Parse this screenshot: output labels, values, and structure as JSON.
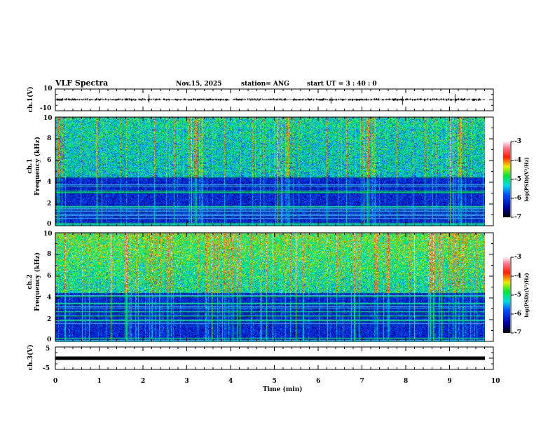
{
  "header": {
    "title": "VLF Spectra",
    "date": "Nov.15, 2025",
    "station": "station= ANG",
    "start": "start  UT =   3  : 40 : 0"
  },
  "chart_data": [
    {
      "type": "line",
      "name": "ch1 waveform",
      "ylabel": "ch.1(V)",
      "ylim": [
        -10,
        10
      ],
      "yticks": [
        "10",
        "-10"
      ],
      "xlim": [
        0,
        10
      ],
      "trace_level": 0
    },
    {
      "type": "heatmap",
      "name": "ch1 spectrogram",
      "ylabel": "ch.1\nFrequency (kHz)",
      "ylabel_top": "ch.1",
      "ylabel_bottom": "Frequency (kHz)",
      "ylim": [
        0,
        10
      ],
      "yticks": [
        "0",
        "2",
        "4",
        "6",
        "8",
        "10"
      ],
      "xlim": [
        0,
        10
      ],
      "data_xmax": 9.8,
      "colorbar": {
        "label": "log(PSD)(V²/Hz)",
        "range": [
          -7,
          -3
        ],
        "ticks": [
          "-3",
          "-4",
          "-5",
          "-6",
          "-7"
        ]
      }
    },
    {
      "type": "heatmap",
      "name": "ch2 spectrogram",
      "ylabel_top": "ch.2",
      "ylabel_bottom": "Frequency (kHz)",
      "ylim": [
        0,
        10
      ],
      "yticks": [
        "0",
        "2",
        "4",
        "6",
        "8",
        "10"
      ],
      "xlim": [
        0,
        10
      ],
      "data_xmax": 9.8,
      "colorbar": {
        "label": "log(PSD)(V²/Hz)",
        "range": [
          -7,
          -3
        ],
        "ticks": [
          "-3",
          "-4",
          "-5",
          "-6",
          "-7"
        ]
      }
    },
    {
      "type": "line",
      "name": "ch3 waveform",
      "ylabel": "ch.3(V)",
      "ylim": [
        -5,
        5
      ],
      "yticks": [
        "5",
        "-5"
      ],
      "xlim": [
        0,
        10
      ],
      "trace_level": 0
    }
  ],
  "xaxis": {
    "label": "Time  (min)",
    "ticks": [
      "0",
      "1",
      "2",
      "3",
      "4",
      "5",
      "6",
      "7",
      "8",
      "9",
      "10"
    ]
  },
  "colors": {
    "axis": "#000000"
  }
}
